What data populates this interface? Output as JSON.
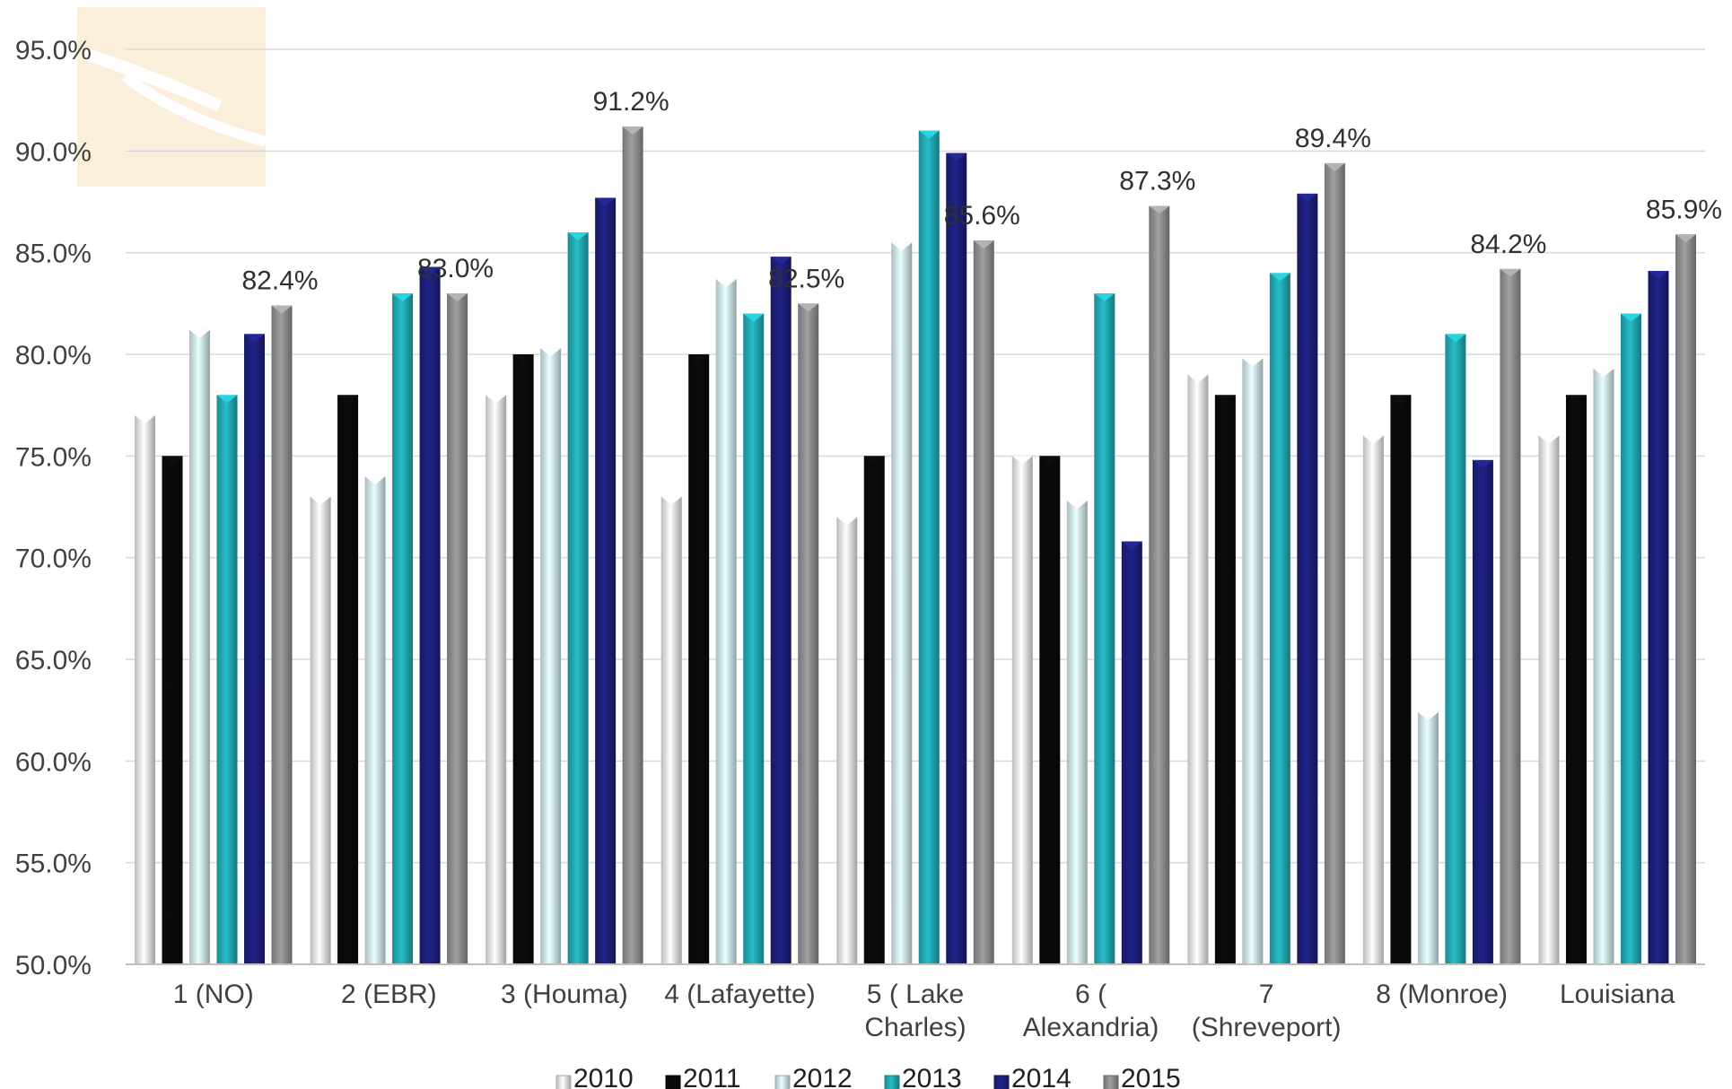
{
  "chart_data": {
    "type": "bar",
    "title": "",
    "xlabel": "",
    "ylabel": "",
    "ylim": [
      50,
      95
    ],
    "y_ticks": [
      "50.0%",
      "55.0%",
      "60.0%",
      "65.0%",
      "70.0%",
      "75.0%",
      "80.0%",
      "85.0%",
      "90.0%",
      "95.0%"
    ],
    "grid": true,
    "legend_position": "bottom",
    "categories": [
      [
        "1 (NO)"
      ],
      [
        "2 (EBR)"
      ],
      [
        "3 (Houma)"
      ],
      [
        "4 (Lafayette)"
      ],
      [
        "5 ( Lake",
        "Charles)"
      ],
      [
        "6 (",
        "Alexandria)"
      ],
      [
        "7",
        "(Shreveport)"
      ],
      [
        "8 (Monroe)"
      ],
      [
        "Louisiana"
      ]
    ],
    "series": [
      {
        "name": "2010",
        "color": "#e4e4e4",
        "values": [
          77.0,
          73.0,
          78.0,
          73.0,
          72.0,
          75.0,
          79.0,
          76.0,
          76.0
        ]
      },
      {
        "name": "2011",
        "color": "#0a0a0a",
        "values": [
          75.0,
          78.0,
          80.0,
          80.0,
          75.0,
          75.0,
          78.0,
          78.0,
          78.0
        ]
      },
      {
        "name": "2012",
        "color": "#cfe7ec",
        "values": [
          81.2,
          74.0,
          80.3,
          83.7,
          85.5,
          72.8,
          79.8,
          62.4,
          79.3
        ]
      },
      {
        "name": "2013",
        "color": "#22a9b3",
        "values": [
          78.0,
          83.0,
          86.0,
          82.0,
          91.0,
          83.0,
          84.0,
          81.0,
          82.0
        ]
      },
      {
        "name": "2014",
        "color": "#1d1f7a",
        "values": [
          81.0,
          84.3,
          87.7,
          84.8,
          89.9,
          70.8,
          87.9,
          74.8,
          84.1
        ]
      },
      {
        "name": "2015",
        "color": "#8f8f8f",
        "values": [
          82.4,
          83.0,
          91.2,
          82.5,
          85.6,
          87.3,
          89.4,
          84.2,
          85.9
        ]
      }
    ],
    "data_labels": [
      "82.4%",
      "83.0%",
      "91.2%",
      "82.5%",
      "85.6%",
      "87.3%",
      "89.4%",
      "84.2%",
      "85.9%"
    ]
  }
}
